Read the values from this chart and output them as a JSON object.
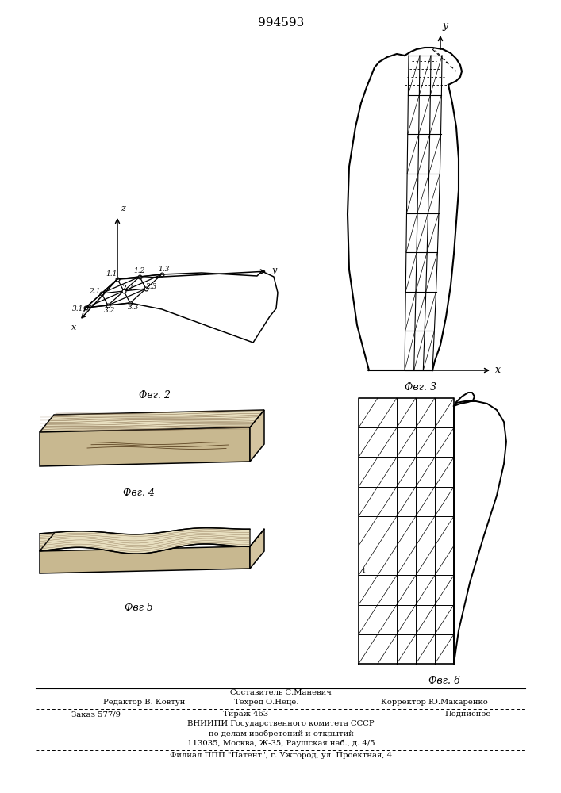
{
  "patent_number": "994593",
  "bg": "#ffffff",
  "fig2_label": "Фвг. 2",
  "fig3_label": "Фвг. 3",
  "fig4_label": "Фвг. 4",
  "fig5_label": "Фвг 5",
  "fig6_label": "Фвг. 6",
  "footer_sostavitel": "Составитель С.Маневич",
  "footer_editor": "Редактор В. Ковтун",
  "footer_tehred": "Техред О.Неце.",
  "footer_korrektor": "Корректор Ю.Макаренко",
  "footer_zakaz": "Заказ 577/9",
  "footer_tirazh": "Тираж 463",
  "footer_podpisnoe": "Подписное",
  "footer_vniip1": "ВНИИПИ Государственного комитета СССР",
  "footer_vniip2": "по делам изобретений и открытий",
  "footer_addr": "113035, Москва, Ж-35, Раушская наб., д. 4/5",
  "footer_filial": "Филиал ППП \"Патент\", г. Ужгород, ул. Проектная, 4"
}
